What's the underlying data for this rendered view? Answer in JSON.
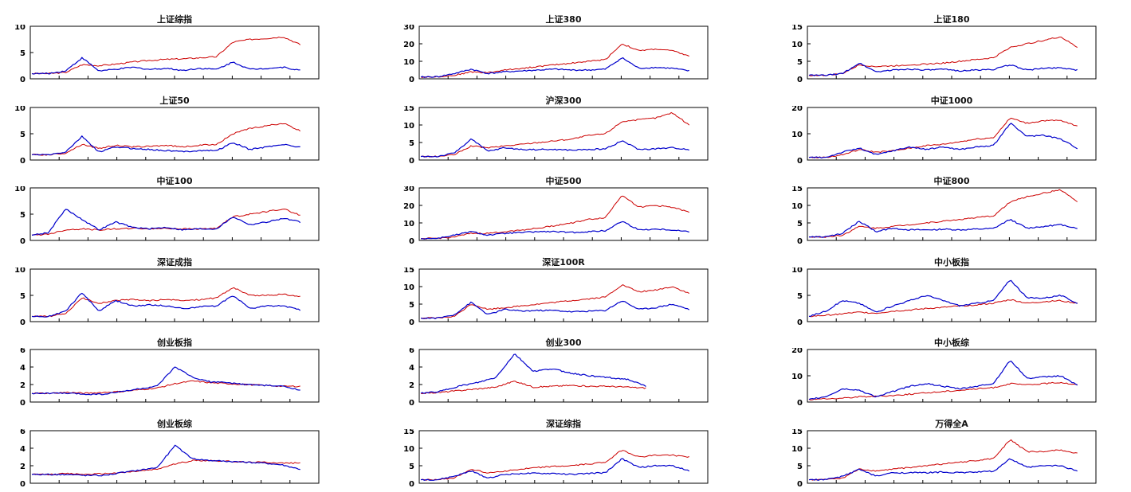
{
  "chart_data": [
    {
      "type": "line",
      "title": "上证综指",
      "ylim": [
        0,
        10
      ],
      "yticks": [
        "0",
        "5",
        "10"
      ],
      "series": [
        {
          "color": "#cc0000",
          "values": [
            1.0,
            1.0,
            1.2,
            2.7,
            2.5,
            2.8,
            3.2,
            3.5,
            3.7,
            3.8,
            4.0,
            4.2,
            7.0,
            7.5,
            7.7,
            8.0,
            6.5
          ]
        },
        {
          "color": "#0000cc",
          "values": [
            1.0,
            1.0,
            1.5,
            4.0,
            1.5,
            1.8,
            2.2,
            1.8,
            2.0,
            1.6,
            2.0,
            1.8,
            3.2,
            1.8,
            2.0,
            2.2,
            1.6
          ]
        }
      ]
    },
    {
      "type": "line",
      "title": "上证380",
      "ylim": [
        0,
        30
      ],
      "yticks": [
        "0",
        "10",
        "20",
        "30"
      ],
      "series": [
        {
          "color": "#cc0000",
          "values": [
            1,
            1.2,
            2,
            4,
            3.5,
            5,
            6,
            7,
            8,
            9,
            10,
            11,
            20,
            16,
            17,
            16,
            13
          ]
        },
        {
          "color": "#0000cc",
          "values": [
            1,
            1.2,
            3,
            5.5,
            3,
            4,
            4.5,
            5,
            5.5,
            5,
            5,
            5.5,
            12,
            6,
            6.5,
            6,
            4.5
          ]
        }
      ]
    },
    {
      "type": "line",
      "title": "上证180",
      "ylim": [
        0,
        15
      ],
      "yticks": [
        "0",
        "5",
        "10",
        "15"
      ],
      "series": [
        {
          "color": "#cc0000",
          "values": [
            1,
            1,
            1.5,
            4,
            3.5,
            3.7,
            4,
            4.2,
            4.5,
            5,
            5.5,
            6,
            9,
            10,
            11,
            12,
            9
          ]
        },
        {
          "color": "#0000cc",
          "values": [
            1,
            1,
            1.5,
            4.5,
            2,
            2.5,
            2.8,
            2.5,
            2.7,
            2.3,
            2.5,
            2.7,
            4,
            2.5,
            3,
            3.2,
            2.5
          ]
        }
      ]
    },
    {
      "type": "line",
      "title": "上证50",
      "ylim": [
        0,
        10
      ],
      "yticks": [
        "0",
        "5",
        "10"
      ],
      "series": [
        {
          "color": "#cc0000",
          "values": [
            1,
            1,
            1.3,
            3,
            2.2,
            2.8,
            2.5,
            2.6,
            2.8,
            2.5,
            2.8,
            3,
            5,
            6,
            6.5,
            7,
            5.5
          ]
        },
        {
          "color": "#0000cc",
          "values": [
            1,
            1,
            1.5,
            4.5,
            1.5,
            2.5,
            2.2,
            2,
            1.8,
            1.6,
            1.8,
            1.8,
            3.3,
            2,
            2.5,
            3,
            2.4
          ]
        }
      ]
    },
    {
      "type": "line",
      "title": "沪深300",
      "ylim": [
        0,
        15
      ],
      "yticks": [
        "0",
        "5",
        "10",
        "15"
      ],
      "series": [
        {
          "color": "#cc0000",
          "values": [
            1,
            1,
            1.5,
            4,
            3.5,
            4,
            4.5,
            5,
            5.5,
            6,
            7,
            7.5,
            11,
            11.5,
            12,
            13.5,
            10
          ]
        },
        {
          "color": "#0000cc",
          "values": [
            1,
            1,
            2,
            6,
            2.5,
            3.5,
            3,
            3,
            3,
            2.8,
            3,
            3.2,
            5.5,
            3,
            3.2,
            3.5,
            3
          ]
        }
      ]
    },
    {
      "type": "line",
      "title": "中证1000",
      "ylim": [
        0,
        20
      ],
      "yticks": [
        "0",
        "10",
        "20"
      ],
      "series": [
        {
          "color": "#cc0000",
          "values": [
            1,
            1,
            2,
            4,
            3,
            3.5,
            4.5,
            5.5,
            6,
            7,
            8,
            8.5,
            16,
            14,
            15,
            15,
            13
          ]
        },
        {
          "color": "#0000cc",
          "values": [
            1,
            1,
            3,
            4.5,
            2,
            3.5,
            5,
            4,
            5,
            4,
            5,
            5.5,
            14,
            9,
            9.5,
            8,
            4.5
          ]
        }
      ]
    },
    {
      "type": "line",
      "title": "中证100",
      "ylim": [
        0,
        10
      ],
      "yticks": [
        "0",
        "5",
        "10"
      ],
      "series": [
        {
          "color": "#cc0000",
          "values": [
            1,
            1.2,
            2,
            2.2,
            2,
            2.2,
            2.3,
            2.2,
            2.3,
            2.2,
            2.2,
            2.3,
            4.5,
            5,
            5.5,
            6,
            4.8
          ]
        },
        {
          "color": "#0000cc",
          "values": [
            1,
            1.5,
            6,
            4,
            2,
            3.5,
            2.5,
            2.2,
            2.5,
            2,
            2.2,
            2.2,
            4.5,
            3,
            3.5,
            4.2,
            3.5
          ]
        }
      ]
    },
    {
      "type": "line",
      "title": "中证500",
      "ylim": [
        0,
        30
      ],
      "yticks": [
        "0",
        "10",
        "20",
        "30"
      ],
      "series": [
        {
          "color": "#cc0000",
          "values": [
            1,
            1.2,
            2,
            4,
            4,
            5,
            6,
            7,
            8.5,
            10,
            12,
            13,
            26,
            19,
            20,
            19,
            16
          ]
        },
        {
          "color": "#0000cc",
          "values": [
            1,
            1.2,
            3,
            5,
            3,
            4,
            4.5,
            5,
            5,
            4.5,
            5,
            5.5,
            11,
            6,
            6.5,
            6,
            5
          ]
        }
      ]
    },
    {
      "type": "line",
      "title": "中证800",
      "ylim": [
        0,
        15
      ],
      "yticks": [
        "0",
        "5",
        "10",
        "15"
      ],
      "series": [
        {
          "color": "#cc0000",
          "values": [
            1,
            1,
            1.5,
            4,
            3.5,
            4,
            4.5,
            5,
            5.5,
            6,
            6.5,
            7,
            11,
            12.5,
            13.5,
            14.5,
            11
          ]
        },
        {
          "color": "#0000cc",
          "values": [
            1,
            1,
            2,
            5.5,
            2.5,
            3.5,
            3,
            3,
            3.2,
            3,
            3.2,
            3.4,
            6,
            3.5,
            4,
            4.5,
            3.5
          ]
        }
      ]
    },
    {
      "type": "line",
      "title": "深证成指",
      "ylim": [
        0,
        10
      ],
      "yticks": [
        "0",
        "5",
        "10"
      ],
      "series": [
        {
          "color": "#cc0000",
          "values": [
            1,
            1,
            1.5,
            4.5,
            3.5,
            4,
            4.2,
            4,
            4.2,
            4,
            4.2,
            4.5,
            6.5,
            5,
            5,
            5.2,
            4.8
          ]
        },
        {
          "color": "#0000cc",
          "values": [
            1,
            1,
            2,
            5.5,
            2,
            4,
            3,
            3.2,
            3,
            2.5,
            2.8,
            3,
            5,
            2.5,
            3,
            3,
            2.2
          ]
        }
      ]
    },
    {
      "type": "line",
      "title": "深证100R",
      "ylim": [
        0,
        15
      ],
      "yticks": [
        "0",
        "5",
        "10",
        "15"
      ],
      "series": [
        {
          "color": "#cc0000",
          "values": [
            1,
            1,
            1.5,
            5,
            3.5,
            4,
            4.5,
            5,
            5.5,
            6,
            6.5,
            7,
            10.5,
            8.5,
            9,
            10,
            8
          ]
        },
        {
          "color": "#0000cc",
          "values": [
            1,
            1,
            2,
            5.5,
            2,
            3.5,
            3,
            3.2,
            3.2,
            2.8,
            3,
            3.2,
            6,
            3.5,
            4,
            5,
            3.5
          ]
        }
      ]
    },
    {
      "type": "line",
      "title": "中小板指",
      "ylim": [
        0,
        10
      ],
      "yticks": [
        "0",
        "5",
        "10"
      ],
      "series": [
        {
          "color": "#cc0000",
          "values": [
            1,
            1.2,
            1.5,
            1.8,
            1.6,
            2,
            2.2,
            2.5,
            2.7,
            3,
            3.2,
            3.5,
            4.2,
            3.5,
            3.8,
            4,
            3.5
          ]
        },
        {
          "color": "#0000cc",
          "values": [
            1,
            2,
            4,
            3.5,
            1.8,
            3,
            4,
            5,
            4,
            3,
            3.5,
            4,
            8,
            4.5,
            4.5,
            5,
            3.5
          ]
        }
      ]
    },
    {
      "type": "line",
      "title": "创业板指",
      "ylim": [
        0,
        6
      ],
      "yticks": [
        "0",
        "2",
        "4",
        "6"
      ],
      "series": [
        {
          "color": "#cc0000",
          "values": [
            1,
            1,
            1.1,
            1,
            1.1,
            1.2,
            1.4,
            1.6,
            2.1,
            2.4,
            2.2,
            2.1,
            2,
            1.9,
            1.8,
            1.8
          ]
        },
        {
          "color": "#0000cc",
          "values": [
            1,
            1,
            1,
            0.9,
            0.9,
            1.2,
            1.5,
            1.8,
            4,
            2.8,
            2.3,
            2.2,
            2,
            1.9,
            1.8,
            1.4
          ]
        }
      ]
    },
    {
      "type": "line",
      "title": "创业300",
      "ylim": [
        0,
        6
      ],
      "yticks": [
        "0",
        "2",
        "4",
        "6"
      ],
      "series": [
        {
          "color": "#cc0000",
          "values": [
            1,
            1.1,
            1.3,
            1.5,
            1.7,
            2.4,
            1.7,
            1.8,
            1.9,
            1.8,
            1.8,
            1.7,
            1.6
          ]
        },
        {
          "color": "#0000cc",
          "values": [
            1,
            1.2,
            1.8,
            2.2,
            2.8,
            5.5,
            3.5,
            3.8,
            3.3,
            3,
            2.8,
            2.6,
            1.8
          ]
        }
      ]
    },
    {
      "type": "line",
      "title": "中小板综",
      "ylim": [
        0,
        20
      ],
      "yticks": [
        "0",
        "10",
        "20"
      ],
      "series": [
        {
          "color": "#cc0000",
          "values": [
            1,
            1.2,
            1.5,
            2,
            2.2,
            2.5,
            3,
            3.5,
            4,
            4.5,
            5,
            5.5,
            7,
            6.5,
            7,
            7.5,
            6.5
          ]
        },
        {
          "color": "#0000cc",
          "values": [
            1,
            2,
            5,
            4.5,
            2,
            4,
            6,
            7,
            6,
            5,
            6,
            7,
            16,
            9,
            9.5,
            10,
            6.5
          ]
        }
      ]
    },
    {
      "type": "line",
      "title": "创业板综",
      "ylim": [
        0,
        6
      ],
      "yticks": [
        "0",
        "2",
        "4",
        "6"
      ],
      "series": [
        {
          "color": "#cc0000",
          "values": [
            1,
            1,
            1.1,
            1,
            1.1,
            1.2,
            1.4,
            1.6,
            2.2,
            2.6,
            2.6,
            2.5,
            2.4,
            2.4,
            2.3,
            2.3
          ]
        },
        {
          "color": "#0000cc",
          "values": [
            1,
            1,
            1,
            0.9,
            0.9,
            1.2,
            1.5,
            1.8,
            4.3,
            2.8,
            2.6,
            2.5,
            2.4,
            2.3,
            2.1,
            1.6
          ]
        }
      ]
    },
    {
      "type": "line",
      "title": "深证综指",
      "ylim": [
        0,
        15
      ],
      "yticks": [
        "0",
        "5",
        "10",
        "15"
      ],
      "series": [
        {
          "color": "#cc0000",
          "values": [
            1,
            1,
            1.5,
            4,
            3,
            3.5,
            4,
            4.5,
            4.8,
            5,
            5.5,
            6,
            9.5,
            7.5,
            8,
            8,
            7.5
          ]
        },
        {
          "color": "#0000cc",
          "values": [
            1,
            1,
            2,
            3.5,
            1.5,
            2.5,
            2.8,
            2.8,
            2.8,
            2.5,
            2.8,
            3,
            7,
            4.5,
            5,
            5,
            3.5
          ]
        }
      ]
    },
    {
      "type": "line",
      "title": "万得全A",
      "ylim": [
        0,
        15
      ],
      "yticks": [
        "0",
        "5",
        "10",
        "15"
      ],
      "series": [
        {
          "color": "#cc0000",
          "values": [
            1,
            1,
            1.5,
            4,
            3.5,
            4,
            4.5,
            5,
            5.5,
            6,
            6.5,
            7,
            12.5,
            9,
            9,
            9.5,
            8.5
          ]
        },
        {
          "color": "#0000cc",
          "values": [
            1,
            1,
            2,
            4,
            2,
            3,
            3,
            3,
            3.2,
            3,
            3.2,
            3.4,
            7,
            4.5,
            5,
            5,
            3.5
          ]
        }
      ]
    }
  ]
}
